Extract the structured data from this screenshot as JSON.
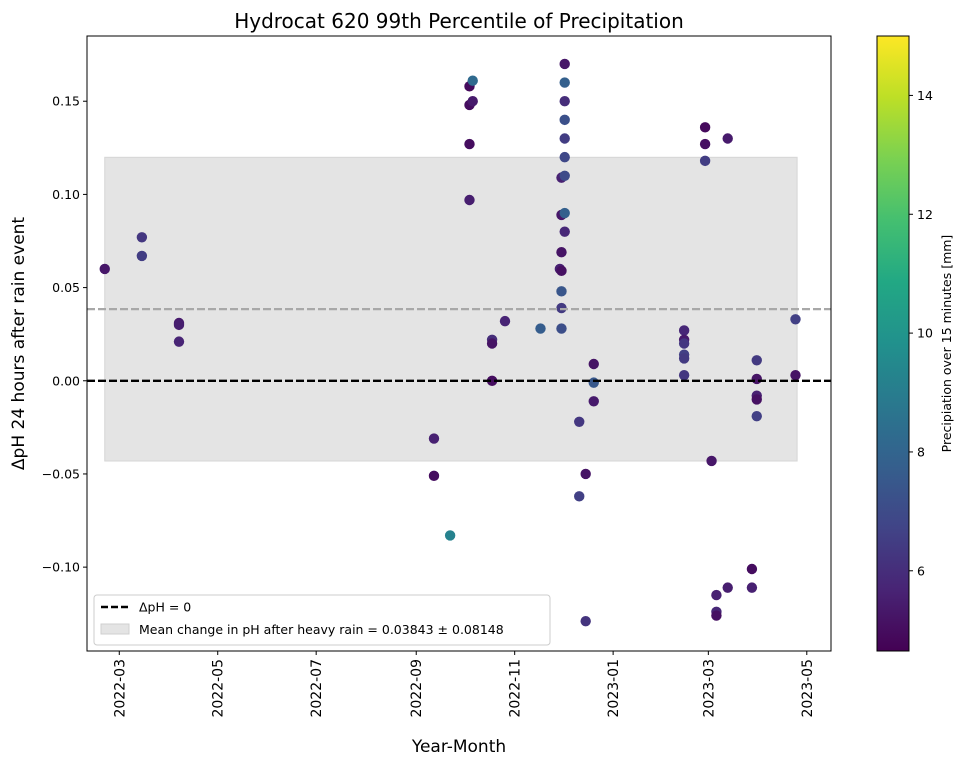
{
  "chart_data": {
    "type": "scatter",
    "title": "Hydrocat 620 99th Percentile of Precipitation",
    "xlabel": "Year-Month",
    "ylabel": "ΔpH 24 hours after rain event",
    "x_tick_labels": [
      "2022-03",
      "2022-05",
      "2022-07",
      "2022-09",
      "2022-11",
      "2023-01",
      "2023-03",
      "2023-05"
    ],
    "x_tick_dates": [
      "2022-03-01",
      "2022-05-01",
      "2022-07-01",
      "2022-09-01",
      "2022-11-01",
      "2023-01-01",
      "2023-03-01",
      "2023-05-01"
    ],
    "xlim": [
      "2022-02-09",
      "2023-05-16"
    ],
    "y_ticks": [
      -0.1,
      -0.05,
      0.0,
      0.05,
      0.1,
      0.15
    ],
    "y_tick_labels": [
      "−0.10",
      "−0.05",
      "0.00",
      "0.05",
      "0.10",
      "0.15"
    ],
    "ylim": [
      -0.145,
      0.185
    ],
    "zero_line": {
      "y": 0.0,
      "label": "ΔpH = 0"
    },
    "mean_line": {
      "y": 0.03843
    },
    "band": {
      "x_start": "2022-02-20",
      "x_end": "2023-04-25",
      "y_low": -0.04305,
      "y_high": 0.11991,
      "label": "Mean change in pH after heavy rain = 0.03843 ± 0.08148"
    },
    "legend_position": "lower-left",
    "colorbar": {
      "label": "Precipiation over 15 minutes [mm]",
      "colormap": "viridis",
      "range": [
        4.65,
        15.0
      ],
      "ticks": [
        6,
        8,
        10,
        12,
        14
      ],
      "tick_labels": [
        "6",
        "8",
        "10",
        "12",
        "14"
      ]
    },
    "points": [
      {
        "x": "2022-02-20",
        "y": 0.06,
        "c": 5.3
      },
      {
        "x": "2022-03-15",
        "y": 0.077,
        "c": 6.3
      },
      {
        "x": "2022-03-15",
        "y": 0.067,
        "c": 6.5
      },
      {
        "x": "2022-04-07",
        "y": 0.031,
        "c": 5.4
      },
      {
        "x": "2022-04-07",
        "y": 0.03,
        "c": 5.5
      },
      {
        "x": "2022-04-07",
        "y": 0.021,
        "c": 5.7
      },
      {
        "x": "2022-09-12",
        "y": -0.031,
        "c": 5.6
      },
      {
        "x": "2022-09-12",
        "y": -0.051,
        "c": 5.0
      },
      {
        "x": "2022-09-22",
        "y": -0.083,
        "c": 9.2
      },
      {
        "x": "2022-10-04",
        "y": 0.158,
        "c": 4.9
      },
      {
        "x": "2022-10-04",
        "y": 0.148,
        "c": 5.0
      },
      {
        "x": "2022-10-04",
        "y": 0.127,
        "c": 5.0
      },
      {
        "x": "2022-10-04",
        "y": 0.097,
        "c": 5.5
      },
      {
        "x": "2022-10-06",
        "y": 0.161,
        "c": 8.2
      },
      {
        "x": "2022-10-06",
        "y": 0.15,
        "c": 5.4
      },
      {
        "x": "2022-10-18",
        "y": 0.022,
        "c": 6.0
      },
      {
        "x": "2022-10-18",
        "y": 0.02,
        "c": 5.2
      },
      {
        "x": "2022-10-18",
        "y": 0.0,
        "c": 5.0
      },
      {
        "x": "2022-10-26",
        "y": 0.032,
        "c": 5.7
      },
      {
        "x": "2022-11-17",
        "y": 0.028,
        "c": 7.7
      },
      {
        "x": "2022-11-29",
        "y": 0.06,
        "c": 5.6
      },
      {
        "x": "2022-11-30",
        "y": 0.109,
        "c": 5.6
      },
      {
        "x": "2022-11-30",
        "y": 0.089,
        "c": 5.3
      },
      {
        "x": "2022-11-30",
        "y": 0.069,
        "c": 5.2
      },
      {
        "x": "2022-11-30",
        "y": 0.059,
        "c": 5.1
      },
      {
        "x": "2022-11-30",
        "y": 0.048,
        "c": 7.4
      },
      {
        "x": "2022-11-30",
        "y": 0.039,
        "c": 6.4
      },
      {
        "x": "2022-11-30",
        "y": 0.028,
        "c": 7.1
      },
      {
        "x": "2022-12-02",
        "y": 0.17,
        "c": 5.3
      },
      {
        "x": "2022-12-02",
        "y": 0.16,
        "c": 7.8
      },
      {
        "x": "2022-12-02",
        "y": 0.15,
        "c": 6.0
      },
      {
        "x": "2022-12-02",
        "y": 0.14,
        "c": 7.2
      },
      {
        "x": "2022-12-02",
        "y": 0.13,
        "c": 6.5
      },
      {
        "x": "2022-12-02",
        "y": 0.12,
        "c": 6.9
      },
      {
        "x": "2022-12-02",
        "y": 0.11,
        "c": 7.0
      },
      {
        "x": "2022-12-02",
        "y": 0.09,
        "c": 7.8
      },
      {
        "x": "2022-12-02",
        "y": 0.08,
        "c": 5.8
      },
      {
        "x": "2022-12-11",
        "y": -0.022,
        "c": 6.3
      },
      {
        "x": "2022-12-11",
        "y": -0.062,
        "c": 6.6
      },
      {
        "x": "2022-12-15",
        "y": -0.05,
        "c": 5.2
      },
      {
        "x": "2022-12-15",
        "y": -0.129,
        "c": 6.2
      },
      {
        "x": "2022-12-20",
        "y": 0.009,
        "c": 5.2
      },
      {
        "x": "2022-12-20",
        "y": -0.001,
        "c": 7.5
      },
      {
        "x": "2022-12-20",
        "y": -0.011,
        "c": 5.4
      },
      {
        "x": "2023-02-14",
        "y": 0.027,
        "c": 5.8
      },
      {
        "x": "2023-02-14",
        "y": 0.022,
        "c": 5.4
      },
      {
        "x": "2023-02-14",
        "y": 0.02,
        "c": 6.3
      },
      {
        "x": "2023-02-14",
        "y": 0.014,
        "c": 6.6
      },
      {
        "x": "2023-02-14",
        "y": 0.012,
        "c": 6.4
      },
      {
        "x": "2023-02-14",
        "y": 0.003,
        "c": 6.3
      },
      {
        "x": "2023-02-27",
        "y": 0.136,
        "c": 4.9
      },
      {
        "x": "2023-02-27",
        "y": 0.127,
        "c": 5.1
      },
      {
        "x": "2023-02-27",
        "y": 0.118,
        "c": 6.5
      },
      {
        "x": "2023-03-03",
        "y": -0.043,
        "c": 5.3
      },
      {
        "x": "2023-03-06",
        "y": -0.115,
        "c": 5.6
      },
      {
        "x": "2023-03-06",
        "y": -0.124,
        "c": 5.8
      },
      {
        "x": "2023-03-06",
        "y": -0.126,
        "c": 5.1
      },
      {
        "x": "2023-03-13",
        "y": 0.13,
        "c": 5.4
      },
      {
        "x": "2023-03-13",
        "y": -0.111,
        "c": 5.5
      },
      {
        "x": "2023-03-28",
        "y": -0.101,
        "c": 5.0
      },
      {
        "x": "2023-03-28",
        "y": -0.111,
        "c": 5.6
      },
      {
        "x": "2023-03-31",
        "y": 0.011,
        "c": 6.4
      },
      {
        "x": "2023-03-31",
        "y": 0.001,
        "c": 5.2
      },
      {
        "x": "2023-03-31",
        "y": -0.008,
        "c": 5.6
      },
      {
        "x": "2023-03-31",
        "y": -0.01,
        "c": 5.1
      },
      {
        "x": "2023-03-31",
        "y": -0.019,
        "c": 6.6
      },
      {
        "x": "2023-04-24",
        "y": 0.033,
        "c": 6.6
      },
      {
        "x": "2023-04-24",
        "y": 0.003,
        "c": 5.2
      }
    ]
  }
}
